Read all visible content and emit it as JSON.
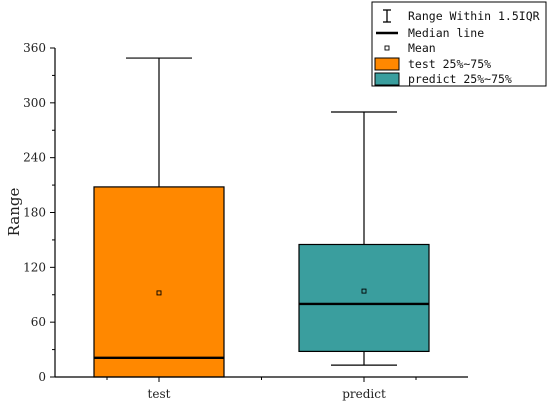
{
  "chart_data": {
    "type": "box",
    "ylabel": "Range",
    "xlabel": "",
    "ylim": [
      0,
      360
    ],
    "yticks": [
      0,
      60,
      120,
      180,
      240,
      300,
      360
    ],
    "categories": [
      "test",
      "predict"
    ],
    "series": [
      {
        "name": "test",
        "whisker_low": 0,
        "q1": 0,
        "median": 21,
        "mean": 92,
        "q3": 208,
        "whisker_high": 349,
        "color": "#FF8800"
      },
      {
        "name": "predict",
        "whisker_low": 13,
        "q1": 28,
        "median": 80,
        "mean": 94,
        "q3": 145,
        "whisker_high": 290,
        "color": "#3A9E9E"
      }
    ],
    "legend": {
      "placement": "top-right",
      "items": [
        {
          "key": "whisker",
          "label": "Range Within 1.5IQR"
        },
        {
          "key": "median",
          "label": "Median line"
        },
        {
          "key": "mean",
          "label": "Mean"
        },
        {
          "key": "box-test",
          "label": "test 25%~75%",
          "color": "#FF8800"
        },
        {
          "key": "box-predict",
          "label": "predict 25%~75%",
          "color": "#3A9E9E"
        }
      ]
    },
    "grid": false
  }
}
